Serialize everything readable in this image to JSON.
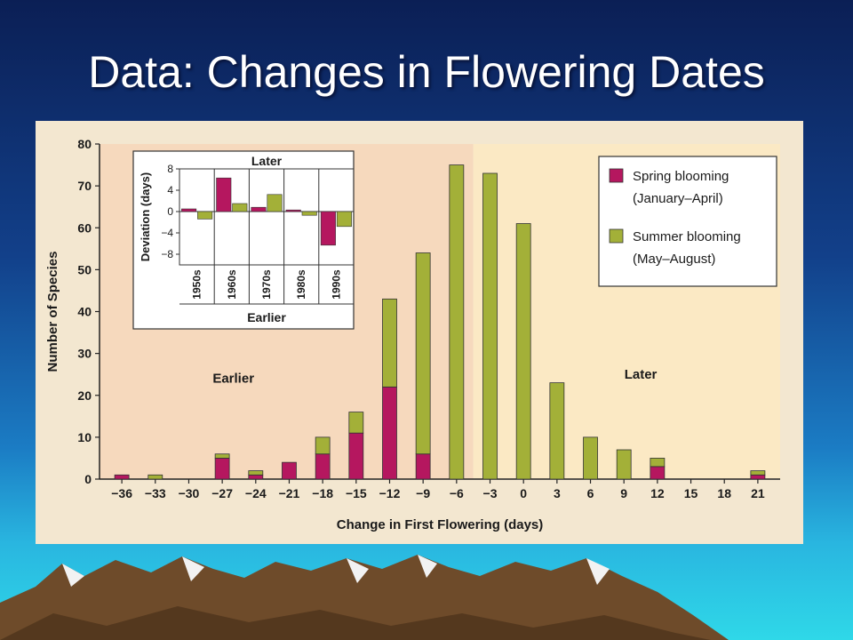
{
  "slide": {
    "title": "Data: Changes in Flowering Dates"
  },
  "colors": {
    "spring": "#b5175f",
    "summer": "#a3b038",
    "panel_left": "#f6d9bd",
    "panel_right": "#fbe9c4",
    "paper": "#f3e7d0"
  },
  "chart_data": [
    {
      "type": "bar",
      "stacked": true,
      "title": "",
      "xlabel": "Change in First Flowering (days)",
      "ylabel": "Number of Species",
      "x": [
        -36,
        -33,
        -30,
        -27,
        -24,
        -21,
        -18,
        -15,
        -12,
        -9,
        -6,
        -3,
        0,
        3,
        6,
        9,
        12,
        15,
        18,
        21
      ],
      "ylim": [
        0,
        80
      ],
      "yticks": [
        0,
        10,
        20,
        30,
        40,
        50,
        60,
        70,
        80
      ],
      "series": [
        {
          "name": "Spring blooming (January–April)",
          "values": [
            1,
            0,
            0,
            5,
            1,
            4,
            6,
            11,
            22,
            6,
            0,
            0,
            0,
            0,
            0,
            0,
            3,
            0,
            0,
            1
          ]
        },
        {
          "name": "Summer blooming (May–August)",
          "values": [
            0,
            1,
            0,
            1,
            1,
            0,
            4,
            5,
            21,
            48,
            75,
            73,
            61,
            23,
            10,
            7,
            2,
            0,
            0,
            1
          ]
        }
      ],
      "region_labels": {
        "left": "Earlier",
        "right": "Later"
      },
      "legend": {
        "placement": "top-right",
        "entries": [
          {
            "line1": "Spring blooming",
            "line2": "(January–April)"
          },
          {
            "line1": "Summer blooming",
            "line2": "(May–August)"
          }
        ]
      }
    },
    {
      "type": "bar",
      "title": "Later",
      "xlabel": "Earlier",
      "ylabel": "Deviation (days)",
      "categories": [
        "1950s",
        "1960s",
        "1970s",
        "1980s",
        "1990s"
      ],
      "ylim": [
        -10,
        8
      ],
      "yticks": [
        8,
        4,
        0,
        -4,
        -8
      ],
      "ytick_labels": [
        "8",
        "4",
        "0",
        "−4",
        "−8"
      ],
      "series": [
        {
          "name": "Spring blooming",
          "values": [
            0.5,
            6.3,
            0.8,
            0.3,
            -6.3
          ]
        },
        {
          "name": "Summer blooming",
          "values": [
            -1.4,
            1.5,
            3.2,
            -0.7,
            -2.8
          ]
        }
      ]
    }
  ]
}
